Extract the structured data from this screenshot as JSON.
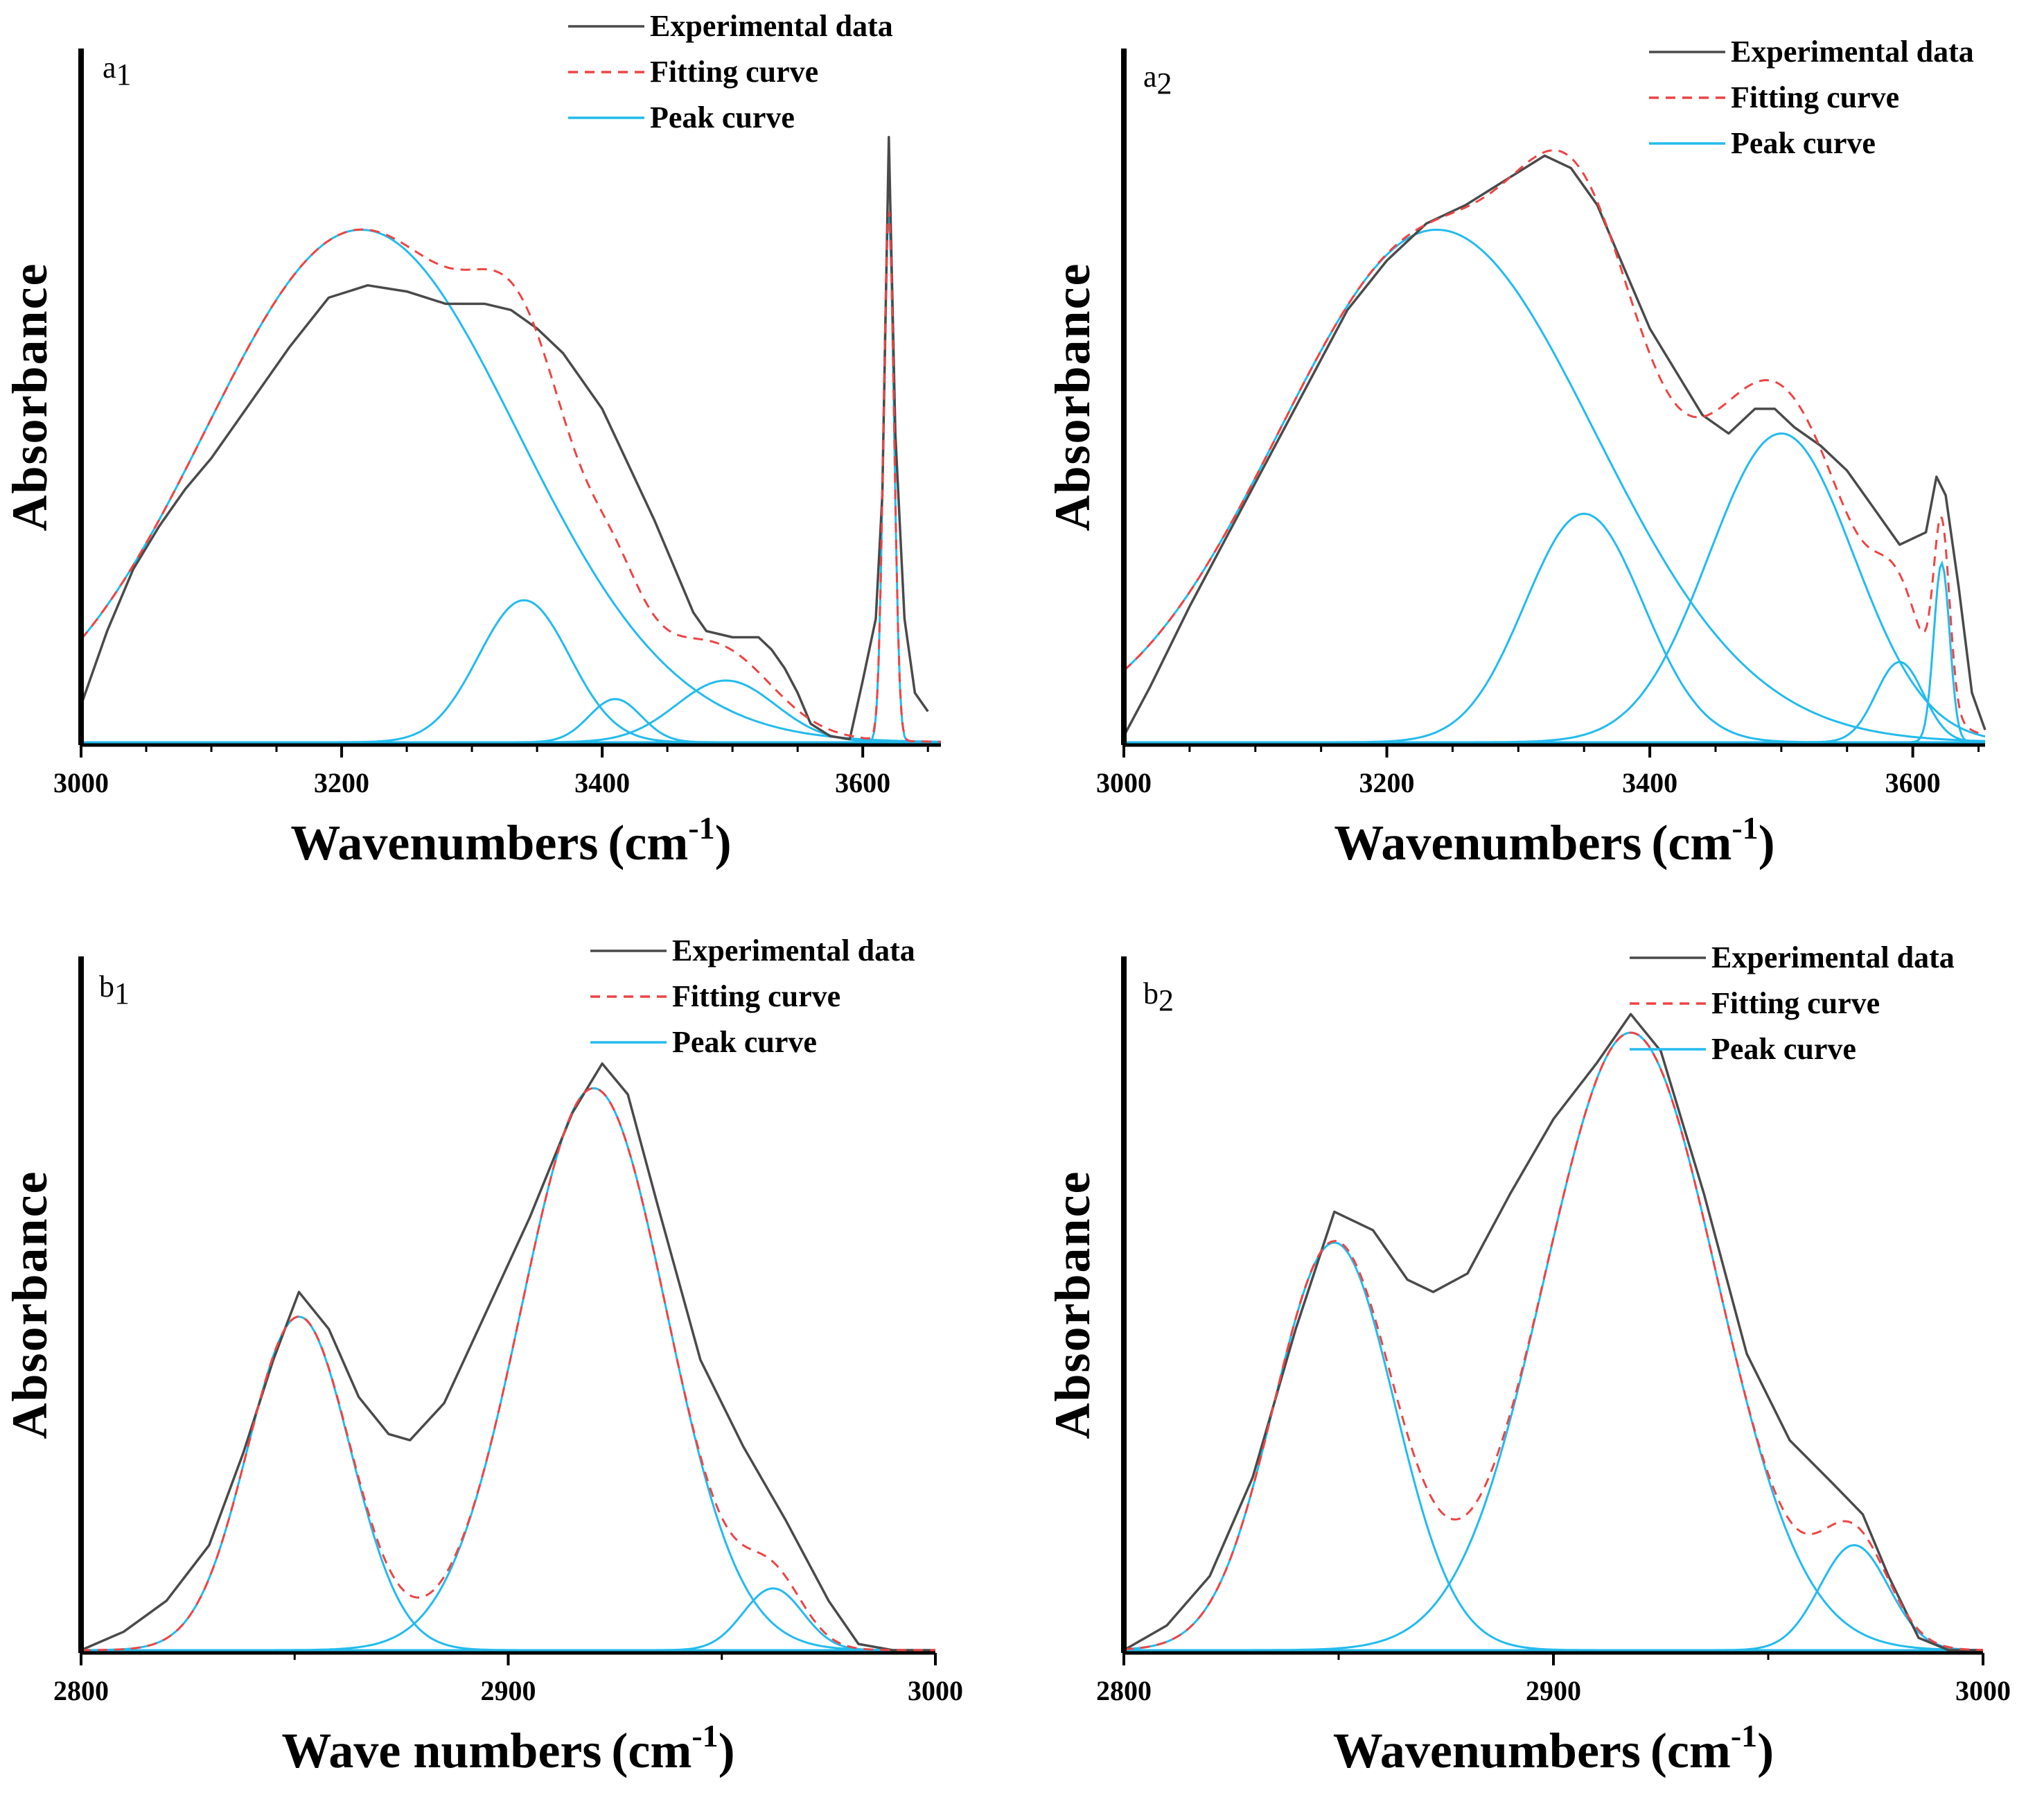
{
  "colors": {
    "experimental": "#4a4a4a",
    "fitting": "#ee4444",
    "peak": "#22bbee",
    "axis": "#000000"
  },
  "chart_data": [
    {
      "panel": "a",
      "panel_sub": "1",
      "type": "line",
      "xlabel": "Wavenumbers",
      "xlabel_unit": "(cm",
      "xlabel_sup": "-1",
      "xlabel_close": ")",
      "ylabel": "Absorbance",
      "xlim": [
        3000,
        3660
      ],
      "ylim": [
        0,
        1.0
      ],
      "xticks": [
        3000,
        3200,
        3400,
        3600
      ],
      "minor_step": 50,
      "legend": [
        "Experimental data",
        "Fitting curve",
        "Peak curve"
      ],
      "peaks": [
        {
          "center": 3215,
          "height": 0.83,
          "sigma": 120
        },
        {
          "center": 3340,
          "height": 0.23,
          "sigma": 35
        },
        {
          "center": 3410,
          "height": 0.07,
          "sigma": 20
        },
        {
          "center": 3495,
          "height": 0.1,
          "sigma": 38
        },
        {
          "center": 3620,
          "height": 0.86,
          "sigma": 4
        }
      ],
      "experimental": [
        [
          3000,
          0.06
        ],
        [
          3020,
          0.18
        ],
        [
          3040,
          0.28
        ],
        [
          3060,
          0.35
        ],
        [
          3080,
          0.41
        ],
        [
          3100,
          0.46
        ],
        [
          3130,
          0.55
        ],
        [
          3160,
          0.64
        ],
        [
          3190,
          0.72
        ],
        [
          3220,
          0.74
        ],
        [
          3250,
          0.73
        ],
        [
          3280,
          0.71
        ],
        [
          3310,
          0.71
        ],
        [
          3330,
          0.7
        ],
        [
          3350,
          0.67
        ],
        [
          3370,
          0.63
        ],
        [
          3400,
          0.54
        ],
        [
          3420,
          0.45
        ],
        [
          3440,
          0.36
        ],
        [
          3460,
          0.26
        ],
        [
          3470,
          0.21
        ],
        [
          3480,
          0.18
        ],
        [
          3500,
          0.17
        ],
        [
          3520,
          0.17
        ],
        [
          3530,
          0.15
        ],
        [
          3540,
          0.12
        ],
        [
          3550,
          0.08
        ],
        [
          3560,
          0.03
        ],
        [
          3575,
          0.01
        ],
        [
          3590,
          0.005
        ],
        [
          3600,
          0.1
        ],
        [
          3610,
          0.2
        ],
        [
          3615,
          0.4
        ],
        [
          3620,
          0.98
        ],
        [
          3625,
          0.5
        ],
        [
          3632,
          0.2
        ],
        [
          3640,
          0.08
        ],
        [
          3650,
          0.05
        ]
      ]
    },
    {
      "panel": "a",
      "panel_sub": "2",
      "type": "line",
      "xlabel": "Wavenumbers",
      "xlabel_unit": "(cm",
      "xlabel_sup": "-1",
      "xlabel_close": ")",
      "ylabel": "Absorbance",
      "xlim": [
        3000,
        3655
      ],
      "ylim": [
        0,
        1.0
      ],
      "xticks": [
        3000,
        3200,
        3400,
        3600
      ],
      "minor_step": 50,
      "legend": [
        "Experimental data",
        "Fitting curve",
        "Peak curve"
      ],
      "peaks": [
        {
          "center": 3238,
          "height": 0.83,
          "sigma": 120
        },
        {
          "center": 3350,
          "height": 0.37,
          "sigma": 45
        },
        {
          "center": 3500,
          "height": 0.5,
          "sigma": 55
        },
        {
          "center": 3590,
          "height": 0.13,
          "sigma": 18
        },
        {
          "center": 3622,
          "height": 0.29,
          "sigma": 6
        }
      ],
      "experimental": [
        [
          3000,
          0.01
        ],
        [
          3020,
          0.09
        ],
        [
          3050,
          0.22
        ],
        [
          3080,
          0.34
        ],
        [
          3110,
          0.46
        ],
        [
          3140,
          0.58
        ],
        [
          3170,
          0.7
        ],
        [
          3200,
          0.78
        ],
        [
          3230,
          0.84
        ],
        [
          3260,
          0.87
        ],
        [
          3290,
          0.91
        ],
        [
          3320,
          0.95
        ],
        [
          3340,
          0.93
        ],
        [
          3360,
          0.87
        ],
        [
          3380,
          0.77
        ],
        [
          3400,
          0.67
        ],
        [
          3420,
          0.6
        ],
        [
          3440,
          0.53
        ],
        [
          3460,
          0.5
        ],
        [
          3480,
          0.54
        ],
        [
          3495,
          0.54
        ],
        [
          3510,
          0.51
        ],
        [
          3530,
          0.48
        ],
        [
          3550,
          0.44
        ],
        [
          3570,
          0.38
        ],
        [
          3590,
          0.32
        ],
        [
          3610,
          0.34
        ],
        [
          3618,
          0.43
        ],
        [
          3625,
          0.4
        ],
        [
          3635,
          0.25
        ],
        [
          3645,
          0.08
        ],
        [
          3655,
          0.02
        ]
      ]
    },
    {
      "panel": "b",
      "panel_sub": "1",
      "type": "line",
      "xlabel": "Wave numbers",
      "xlabel_unit": "(cm",
      "xlabel_sup": "-1",
      "xlabel_close": ")",
      "ylabel": "Absorbance",
      "xlim": [
        2800,
        3000
      ],
      "ylim": [
        0,
        1.0
      ],
      "xticks": [
        2800,
        2900,
        3000
      ],
      "minor_step": 50,
      "legend": [
        "Experimental data",
        "Fitting curve",
        "Peak curve"
      ],
      "peaks": [
        {
          "center": 2851,
          "height": 0.54,
          "sigma": 12
        },
        {
          "center": 2920,
          "height": 0.91,
          "sigma": 17
        },
        {
          "center": 2962,
          "height": 0.1,
          "sigma": 7
        }
      ],
      "experimental": [
        [
          2800,
          0.0
        ],
        [
          2810,
          0.03
        ],
        [
          2820,
          0.08
        ],
        [
          2830,
          0.17
        ],
        [
          2838,
          0.32
        ],
        [
          2845,
          0.47
        ],
        [
          2851,
          0.58
        ],
        [
          2858,
          0.52
        ],
        [
          2865,
          0.41
        ],
        [
          2872,
          0.35
        ],
        [
          2877,
          0.34
        ],
        [
          2885,
          0.4
        ],
        [
          2895,
          0.55
        ],
        [
          2905,
          0.7
        ],
        [
          2915,
          0.87
        ],
        [
          2922,
          0.95
        ],
        [
          2928,
          0.9
        ],
        [
          2935,
          0.72
        ],
        [
          2945,
          0.47
        ],
        [
          2955,
          0.33
        ],
        [
          2965,
          0.21
        ],
        [
          2975,
          0.08
        ],
        [
          2982,
          0.01
        ],
        [
          2990,
          0.0
        ],
        [
          3000,
          0.0
        ]
      ]
    },
    {
      "panel": "b",
      "panel_sub": "2",
      "type": "line",
      "xlabel": "Wavenumbers",
      "xlabel_unit": "(cm",
      "xlabel_sup": "-1",
      "xlabel_close": ")",
      "ylabel": "Absorbance",
      "xlim": [
        2800,
        3000
      ],
      "ylim": [
        0,
        1.0
      ],
      "xticks": [
        2800,
        2900,
        3000
      ],
      "minor_step": 50,
      "legend": [
        "Experimental data",
        "Fitting curve",
        "Peak curve"
      ],
      "peaks": [
        {
          "center": 2849,
          "height": 0.66,
          "sigma": 14
        },
        {
          "center": 2918,
          "height": 1.0,
          "sigma": 20
        },
        {
          "center": 2970,
          "height": 0.17,
          "sigma": 8
        }
      ],
      "experimental": [
        [
          2800,
          0.0
        ],
        [
          2810,
          0.04
        ],
        [
          2820,
          0.12
        ],
        [
          2830,
          0.28
        ],
        [
          2840,
          0.52
        ],
        [
          2849,
          0.71
        ],
        [
          2858,
          0.68
        ],
        [
          2866,
          0.6
        ],
        [
          2872,
          0.58
        ],
        [
          2880,
          0.61
        ],
        [
          2890,
          0.74
        ],
        [
          2900,
          0.86
        ],
        [
          2910,
          0.95
        ],
        [
          2918,
          1.03
        ],
        [
          2925,
          0.97
        ],
        [
          2935,
          0.74
        ],
        [
          2945,
          0.48
        ],
        [
          2955,
          0.34
        ],
        [
          2965,
          0.27
        ],
        [
          2972,
          0.22
        ],
        [
          2978,
          0.12
        ],
        [
          2985,
          0.02
        ],
        [
          2992,
          0.0
        ],
        [
          3000,
          0.0
        ]
      ]
    }
  ]
}
